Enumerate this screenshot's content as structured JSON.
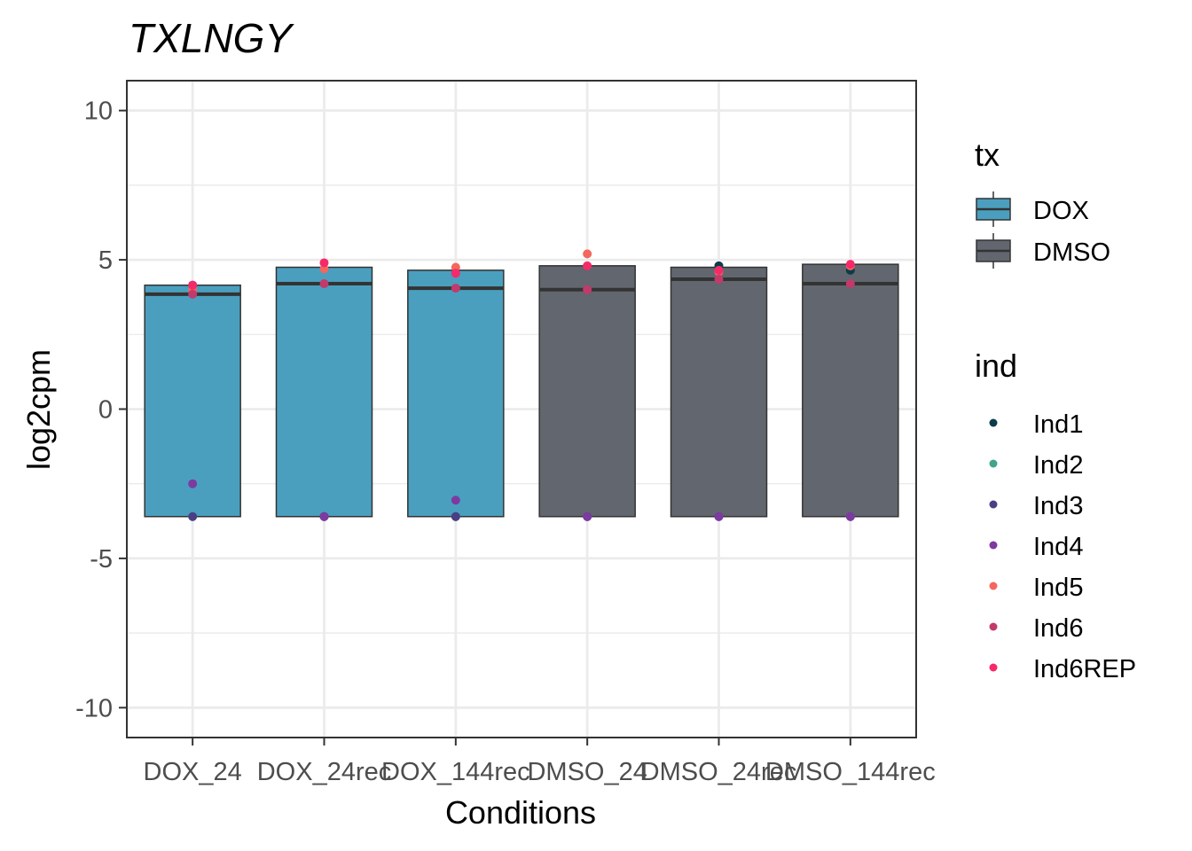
{
  "chart_data": {
    "type": "bar",
    "title": "TXLNGY",
    "xlabel": "Conditions",
    "ylabel": "log2cpm",
    "ylim": [
      -11,
      11
    ],
    "yticks": [
      -10,
      -5,
      0,
      5,
      10
    ],
    "ytick_labels": [
      "-10",
      "-5",
      "0",
      "5",
      "10"
    ],
    "grid": true,
    "legend_position": "right",
    "categories": [
      "DOX_24",
      "DOX_24rec",
      "DOX_144rec",
      "DMSO_24",
      "DMSO_24rec",
      "DMSO_144rec"
    ],
    "baseline": -3.6,
    "bars": [
      {
        "category": "DOX_24",
        "tx": "DOX",
        "top": 4.15,
        "median": 3.85
      },
      {
        "category": "DOX_24rec",
        "tx": "DOX",
        "top": 4.75,
        "median": 4.2
      },
      {
        "category": "DOX_144rec",
        "tx": "DOX",
        "top": 4.65,
        "median": 4.05
      },
      {
        "category": "DMSO_24",
        "tx": "DMSO",
        "top": 4.8,
        "median": 4.0
      },
      {
        "category": "DMSO_24rec",
        "tx": "DMSO",
        "top": 4.75,
        "median": 4.35
      },
      {
        "category": "DMSO_144rec",
        "tx": "DMSO",
        "top": 4.85,
        "median": 4.2
      }
    ],
    "points": [
      {
        "category": "DOX_24",
        "ind": "Ind1",
        "value": 4.15
      },
      {
        "category": "DOX_24",
        "ind": "Ind2",
        "value": -3.6
      },
      {
        "category": "DOX_24",
        "ind": "Ind3",
        "value": -3.6
      },
      {
        "category": "DOX_24",
        "ind": "Ind4",
        "value": -2.5
      },
      {
        "category": "DOX_24",
        "ind": "Ind5",
        "value": 4.0
      },
      {
        "category": "DOX_24",
        "ind": "Ind6",
        "value": 3.85
      },
      {
        "category": "DOX_24",
        "ind": "Ind6REP",
        "value": 4.15
      },
      {
        "category": "DOX_24rec",
        "ind": "Ind1",
        "value": -3.6
      },
      {
        "category": "DOX_24rec",
        "ind": "Ind2",
        "value": -3.6
      },
      {
        "category": "DOX_24rec",
        "ind": "Ind3",
        "value": -3.6
      },
      {
        "category": "DOX_24rec",
        "ind": "Ind4",
        "value": -3.6
      },
      {
        "category": "DOX_24rec",
        "ind": "Ind5",
        "value": 4.7
      },
      {
        "category": "DOX_24rec",
        "ind": "Ind6",
        "value": 4.2
      },
      {
        "category": "DOX_24rec",
        "ind": "Ind6REP",
        "value": 4.9
      },
      {
        "category": "DOX_144rec",
        "ind": "Ind1",
        "value": -3.6
      },
      {
        "category": "DOX_144rec",
        "ind": "Ind2",
        "value": -3.6
      },
      {
        "category": "DOX_144rec",
        "ind": "Ind3",
        "value": -3.6
      },
      {
        "category": "DOX_144rec",
        "ind": "Ind4",
        "value": -3.05
      },
      {
        "category": "DOX_144rec",
        "ind": "Ind5",
        "value": 4.75
      },
      {
        "category": "DOX_144rec",
        "ind": "Ind6",
        "value": 4.05
      },
      {
        "category": "DOX_144rec",
        "ind": "Ind6REP",
        "value": 4.55
      },
      {
        "category": "DMSO_24",
        "ind": "Ind1",
        "value": -3.6
      },
      {
        "category": "DMSO_24",
        "ind": "Ind2",
        "value": -3.6
      },
      {
        "category": "DMSO_24",
        "ind": "Ind3",
        "value": -3.6
      },
      {
        "category": "DMSO_24",
        "ind": "Ind4",
        "value": -3.6
      },
      {
        "category": "DMSO_24",
        "ind": "Ind5",
        "value": 5.2
      },
      {
        "category": "DMSO_24",
        "ind": "Ind6",
        "value": 4.0
      },
      {
        "category": "DMSO_24",
        "ind": "Ind6REP",
        "value": 4.8
      },
      {
        "category": "DMSO_24rec",
        "ind": "Ind1",
        "value": 4.8
      },
      {
        "category": "DMSO_24rec",
        "ind": "Ind2",
        "value": -3.6
      },
      {
        "category": "DMSO_24rec",
        "ind": "Ind3",
        "value": -3.6
      },
      {
        "category": "DMSO_24rec",
        "ind": "Ind4",
        "value": -3.6
      },
      {
        "category": "DMSO_24rec",
        "ind": "Ind5",
        "value": 4.6
      },
      {
        "category": "DMSO_24rec",
        "ind": "Ind6",
        "value": 4.35
      },
      {
        "category": "DMSO_24rec",
        "ind": "Ind6REP",
        "value": 4.65
      },
      {
        "category": "DMSO_144rec",
        "ind": "Ind1",
        "value": 4.65
      },
      {
        "category": "DMSO_144rec",
        "ind": "Ind2",
        "value": -3.6
      },
      {
        "category": "DMSO_144rec",
        "ind": "Ind3",
        "value": -3.6
      },
      {
        "category": "DMSO_144rec",
        "ind": "Ind4",
        "value": -3.6
      },
      {
        "category": "DMSO_144rec",
        "ind": "Ind5",
        "value": 4.8
      },
      {
        "category": "DMSO_144rec",
        "ind": "Ind6",
        "value": 4.2
      },
      {
        "category": "DMSO_144rec",
        "ind": "Ind6REP",
        "value": 4.85
      }
    ],
    "legend_tx": {
      "title": "tx",
      "items": [
        {
          "label": "DOX",
          "color": "#4A9FBF"
        },
        {
          "label": "DMSO",
          "color": "#62666E"
        }
      ]
    },
    "legend_ind": {
      "title": "ind",
      "items": [
        {
          "label": "Ind1",
          "color": "#0B3C49"
        },
        {
          "label": "Ind2",
          "color": "#3FA58A"
        },
        {
          "label": "Ind3",
          "color": "#4A3E86"
        },
        {
          "label": "Ind4",
          "color": "#7D3AA0"
        },
        {
          "label": "Ind5",
          "color": "#F4665E"
        },
        {
          "label": "Ind6",
          "color": "#C23A6B"
        },
        {
          "label": "Ind6REP",
          "color": "#F52A68"
        }
      ]
    }
  }
}
